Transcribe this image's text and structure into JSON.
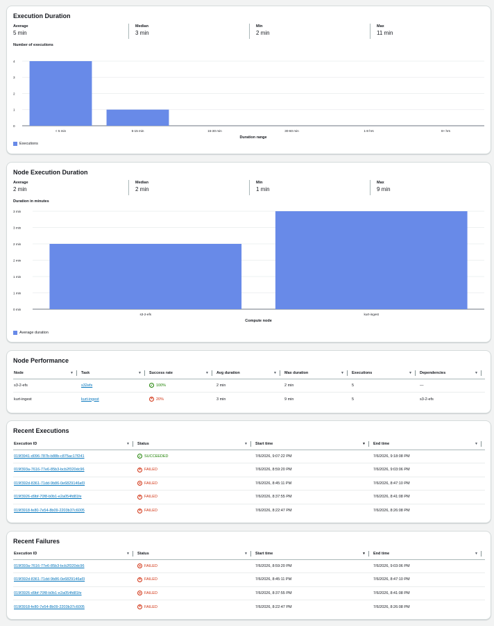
{
  "execution_duration": {
    "title": "Execution Duration",
    "stats": [
      {
        "label": "Average",
        "value": "5 min"
      },
      {
        "label": "Median",
        "value": "3 min"
      },
      {
        "label": "Min",
        "value": "2 min"
      },
      {
        "label": "Max",
        "value": "11 min"
      }
    ],
    "legend": "Executions"
  },
  "node_execution_duration": {
    "title": "Node Execution Duration",
    "stats": [
      {
        "label": "Average",
        "value": "2 min"
      },
      {
        "label": "Median",
        "value": "2 min"
      },
      {
        "label": "Min",
        "value": "1 min"
      },
      {
        "label": "Max",
        "value": "9 min"
      }
    ],
    "legend": "Average duration"
  },
  "chart_data": [
    {
      "type": "bar",
      "ylabel": "Number of executions",
      "xlabel": "Duration range",
      "categories": [
        "< 5 min",
        "5-15 min",
        "15-30 min",
        "30-60 min",
        "1-8 hrs",
        "8+ hrs"
      ],
      "series": [
        {
          "name": "Executions",
          "values": [
            4,
            1,
            0,
            0,
            0,
            0
          ]
        }
      ],
      "ylim": [
        0,
        4
      ],
      "yticks": [
        "0",
        "1",
        "2",
        "3",
        "4"
      ],
      "color": "#688ae8",
      "grid": true,
      "legend": "bottom-left"
    },
    {
      "type": "bar",
      "ylabel": "Duration in minutes",
      "xlabel": "Compute node",
      "categories": [
        "s3-2-efs",
        "kurt-ingest"
      ],
      "series": [
        {
          "name": "Average duration",
          "values": [
            2,
            3
          ]
        }
      ],
      "ylim": [
        0,
        3
      ],
      "yticks": [
        "0 min",
        "1 min",
        "1 min",
        "2 min",
        "2 min",
        "3 min",
        "3 min"
      ],
      "color": "#688ae8",
      "grid": true,
      "legend": "bottom-left"
    }
  ],
  "node_performance": {
    "title": "Node Performance",
    "headers": [
      "Node",
      "Task",
      "Success rate",
      "Avg duration",
      "Max duration",
      "Executions",
      "Dependencies"
    ],
    "rows": [
      {
        "node": "s3-2-efs",
        "task": "s32efs",
        "rate": "100%",
        "rate_status": "ok",
        "avg": "2 min",
        "max": "2 min",
        "executions": "5",
        "deps": "—"
      },
      {
        "node": "kurt-ingest",
        "task": "kurt-ingest",
        "rate": "20%",
        "rate_status": "fail",
        "avg": "3 min",
        "max": "9 min",
        "executions": "5",
        "deps": "s3-2-efs"
      }
    ]
  },
  "recent_executions": {
    "title": "Recent Executions",
    "headers": [
      "Execution ID",
      "Status",
      "Start time",
      "End time"
    ],
    "rows": [
      {
        "id": "019f3941-d096-787b-b88b-c875ac17f241",
        "status": "SUCCEEDED",
        "kind": "ok",
        "start": "7/6/2026, 9:07:22 PM",
        "end": "7/6/2026, 9:18:08 PM"
      },
      {
        "id": "019f393a-7616-77e6-85b3-bcb2f320dc96",
        "status": "FAILED",
        "kind": "fail",
        "start": "7/6/2026, 8:59:20 PM",
        "end": "7/6/2026, 9:03:06 PM"
      },
      {
        "id": "019f392d-8361-71dd-9b86-0e6829146af3",
        "status": "FAILED",
        "kind": "fail",
        "start": "7/6/2026, 8:45:11 PM",
        "end": "7/6/2026, 8:47:10 PM"
      },
      {
        "id": "019f3926-d9bf-70f8-b0b1-e2a054fd81fe",
        "status": "FAILED",
        "kind": "fail",
        "start": "7/6/2026, 8:37:55 PM",
        "end": "7/6/2026, 8:41:08 PM"
      },
      {
        "id": "019f3918-fe80-7e54-8b09-2203b37c6005",
        "status": "FAILED",
        "kind": "fail",
        "start": "7/6/2026, 8:22:47 PM",
        "end": "7/6/2026, 8:26:08 PM"
      }
    ]
  },
  "recent_failures": {
    "title": "Recent Failures",
    "headers": [
      "Execution ID",
      "Status",
      "Start time",
      "End time"
    ],
    "rows": [
      {
        "id": "019f393a-7616-77e6-85b3-bcb2f320dc96",
        "status": "FAILED",
        "kind": "fail",
        "start": "7/6/2026, 8:59:20 PM",
        "end": "7/6/2026, 9:03:06 PM"
      },
      {
        "id": "019f392d-8361-71dd-9b86-0e6829146af3",
        "status": "FAILED",
        "kind": "fail",
        "start": "7/6/2026, 8:45:11 PM",
        "end": "7/6/2026, 8:47:10 PM"
      },
      {
        "id": "019f3926-d9bf-70f8-b0b1-e2a054fd81fe",
        "status": "FAILED",
        "kind": "fail",
        "start": "7/6/2026, 8:37:55 PM",
        "end": "7/6/2026, 8:41:08 PM"
      },
      {
        "id": "019f3918-fe80-7e54-8b09-2203b37c6005",
        "status": "FAILED",
        "kind": "fail",
        "start": "7/6/2026, 8:22:47 PM",
        "end": "7/6/2026, 8:26:08 PM"
      }
    ]
  }
}
